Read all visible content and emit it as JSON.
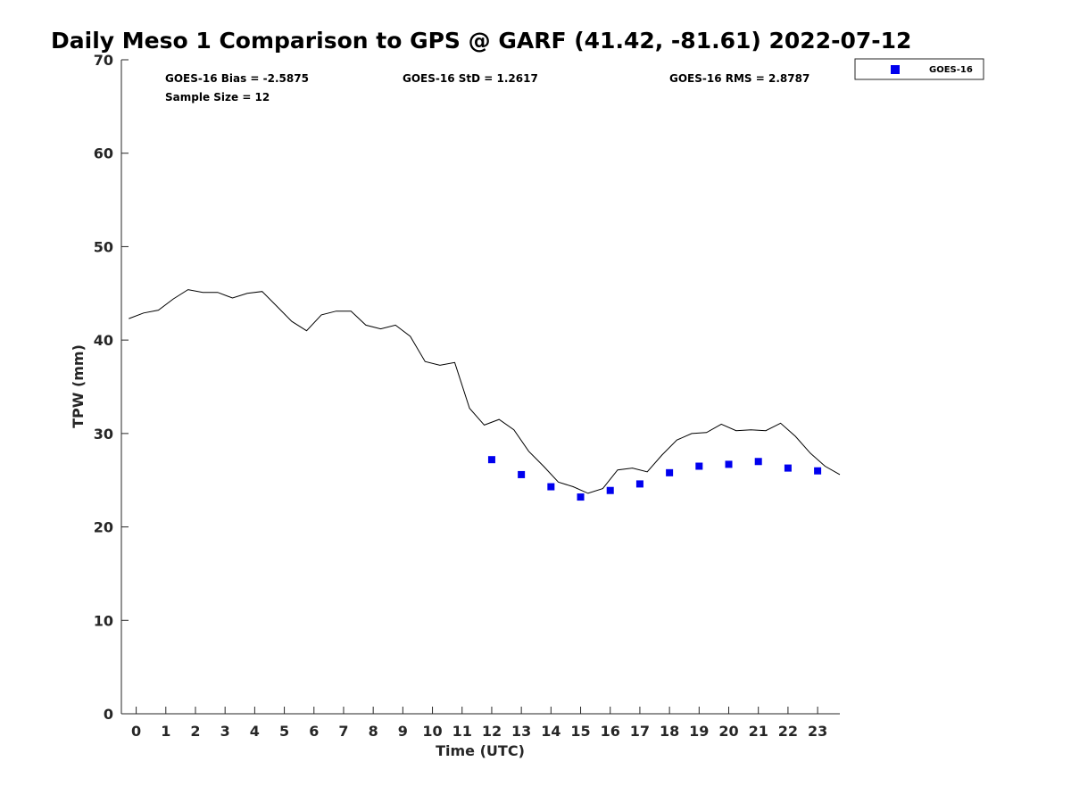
{
  "chart_data": {
    "type": "scatter",
    "title": "Daily Meso 1 Comparison to GPS @ GARF (41.42, -81.61) 2022-07-12",
    "xlabel": "Time (UTC)",
    "ylabel": "TPW (mm)",
    "xlim": [
      -0.5,
      23.75
    ],
    "ylim": [
      0,
      70
    ],
    "x_ticks": [
      "0",
      "1",
      "2",
      "3",
      "4",
      "5",
      "6",
      "7",
      "8",
      "9",
      "10",
      "11",
      "12",
      "13",
      "14",
      "15",
      "16",
      "17",
      "18",
      "19",
      "20",
      "21",
      "22",
      "23"
    ],
    "y_ticks": [
      "0",
      "10",
      "20",
      "30",
      "40",
      "50",
      "60",
      "70"
    ],
    "grid": false,
    "legend_position": "top-right (outside plot)",
    "stats": {
      "bias": "GOES-16 Bias = -2.5875",
      "std": "GOES-16 StD = 1.2617",
      "rms": "GOES-16 RMS = 2.8787",
      "sample_size": "Sample Size = 12"
    },
    "series": [
      {
        "name": "GOES-16",
        "kind": "scatter",
        "marker": "square",
        "color": "#0000ee",
        "x": [
          12,
          13,
          14,
          15,
          16,
          17,
          18,
          19,
          20,
          21,
          22,
          23
        ],
        "y": [
          27.2,
          25.6,
          24.3,
          23.2,
          23.9,
          24.6,
          25.8,
          26.5,
          26.7,
          27.0,
          26.3,
          26.0
        ]
      },
      {
        "kind": "line",
        "color": "#000000",
        "x": [
          -0.25,
          0.25,
          0.75,
          1.25,
          1.75,
          2.25,
          2.75,
          3.25,
          3.75,
          4.25,
          4.75,
          5.25,
          5.75,
          6.25,
          6.75,
          7.25,
          7.75,
          8.25,
          8.75,
          9.25,
          9.75,
          10.25,
          10.75,
          11.25,
          11.75,
          12.25,
          12.75,
          13.25,
          13.75,
          14.25,
          14.75,
          15.25,
          15.75,
          16.25,
          16.75,
          17.25,
          17.75,
          18.25,
          18.75,
          19.25,
          19.75,
          20.25,
          20.75,
          21.25,
          21.75,
          22.25,
          22.75,
          23.25,
          23.75
        ],
        "y": [
          42.3,
          42.9,
          43.2,
          44.4,
          45.4,
          45.1,
          45.1,
          44.5,
          45.0,
          45.2,
          43.6,
          42.0,
          41.0,
          42.7,
          43.1,
          43.1,
          41.6,
          41.2,
          41.6,
          40.4,
          37.7,
          37.3,
          37.6,
          32.7,
          30.9,
          31.5,
          30.4,
          28.1,
          26.5,
          24.8,
          24.3,
          23.6,
          24.1,
          26.1,
          26.3,
          25.9,
          27.7,
          29.3,
          30.0,
          30.1,
          31.0,
          30.3,
          30.4,
          30.3,
          31.1,
          29.7,
          27.9,
          26.5,
          25.6
        ]
      }
    ]
  }
}
